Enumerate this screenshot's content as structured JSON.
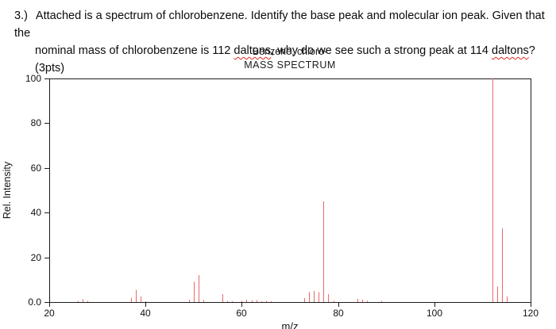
{
  "question": {
    "spellcheck_underline_color": "#e02a1e",
    "lines": [
      {
        "indent": false,
        "segments": [
          {
            "text": "3.)",
            "num": true
          },
          {
            "text": "Attached is a spectrum of chlorobenzene. Identify the base peak and molecular ion peak. Given that the"
          }
        ]
      },
      {
        "indent": true,
        "segments": [
          {
            "text": "nominal mass of chlorobenzene is 112 "
          },
          {
            "text": "daltons",
            "wavy": true
          },
          {
            "text": ", why do we see such a strong peak at 114 "
          },
          {
            "text": "daltons",
            "wavy": true
          },
          {
            "text": "? (3pts)"
          }
        ]
      }
    ]
  },
  "chart": {
    "title": "Benzene, chloro-",
    "subtitle": "MASS SPECTRUM",
    "xlabel": "m/z",
    "ylabel": "Rel. Intensity",
    "axis_color": "#1c1c1c",
    "y_ticks": [
      {
        "label": "100",
        "value": 100
      },
      {
        "label": "80",
        "value": 80
      },
      {
        "label": "60",
        "value": 60
      },
      {
        "label": "40",
        "value": 40
      },
      {
        "label": "20",
        "value": 20
      },
      {
        "label": "0.0",
        "value": 0
      }
    ],
    "x_ticks": [
      {
        "label": "20",
        "value": 20
      },
      {
        "label": "40",
        "value": 40
      },
      {
        "label": "60",
        "value": 60
      },
      {
        "label": "80",
        "value": 80
      },
      {
        "label": "100",
        "value": 100
      },
      {
        "label": "120",
        "value": 120
      }
    ]
  },
  "chart_data": {
    "type": "bar",
    "title": "Benzene, chloro-",
    "subtitle": "MASS SPECTRUM",
    "xlabel": "m/z",
    "ylabel": "Rel. Intensity",
    "xlim": [
      20,
      120
    ],
    "ylim": [
      0,
      100
    ],
    "grid": false,
    "legend": false,
    "peak_color": "#ea6a6a",
    "peaks": [
      [
        26,
        0.5
      ],
      [
        27,
        1.2
      ],
      [
        28,
        0.5
      ],
      [
        37,
        2
      ],
      [
        38,
        5.5
      ],
      [
        39,
        2.5
      ],
      [
        40,
        0.4
      ],
      [
        49,
        1
      ],
      [
        50,
        9
      ],
      [
        51,
        12
      ],
      [
        52,
        0.8
      ],
      [
        56,
        3.5
      ],
      [
        57,
        0.6
      ],
      [
        58,
        0.4
      ],
      [
        60,
        0.5
      ],
      [
        61,
        1
      ],
      [
        62,
        0.7
      ],
      [
        63,
        0.9
      ],
      [
        64,
        0.4
      ],
      [
        65,
        0.5
      ],
      [
        66,
        0.4
      ],
      [
        73,
        1.8
      ],
      [
        74,
        4.5
      ],
      [
        75,
        5
      ],
      [
        76,
        4.5
      ],
      [
        77,
        45
      ],
      [
        78,
        3.5
      ],
      [
        79,
        0.6
      ],
      [
        84,
        1.5
      ],
      [
        85,
        1
      ],
      [
        86,
        0.5
      ],
      [
        89,
        0.6
      ],
      [
        112,
        100
      ],
      [
        113,
        7
      ],
      [
        114,
        33
      ],
      [
        115,
        2.5
      ]
    ]
  }
}
